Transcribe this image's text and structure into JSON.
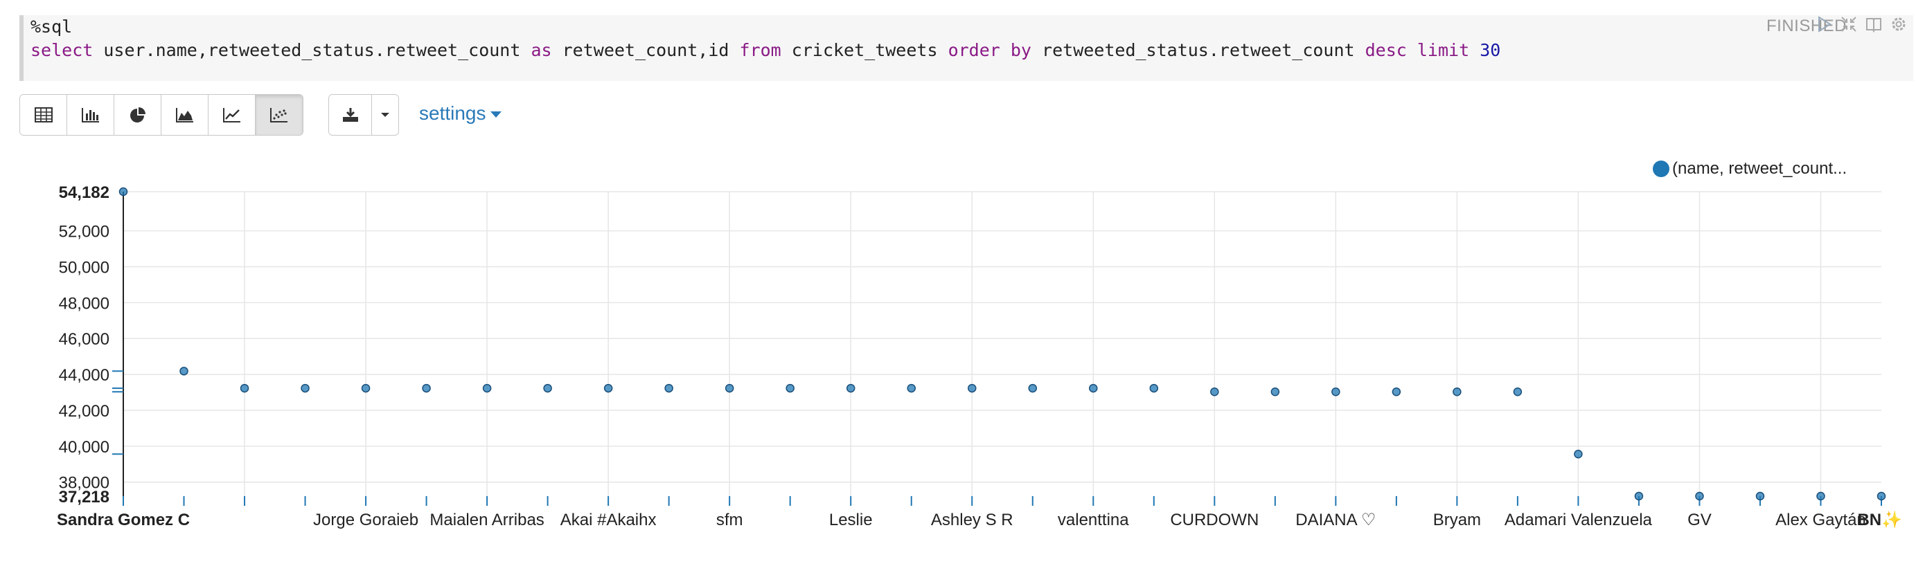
{
  "editor": {
    "magic": "%sql",
    "query": {
      "t1": "select",
      "t2": " user.name,retweeted_status.retweet_count ",
      "t3": "as",
      "t4": " retweet_count,id ",
      "t5": "from",
      "t6": " cricket_tweets ",
      "t7": "order by",
      "t8": " retweeted_status.retweet_count ",
      "t9": "desc limit",
      "t10": " ",
      "t11": "30"
    }
  },
  "status": "FINISHED",
  "toolbar": {
    "buttons": [
      "table-icon",
      "bar-chart-icon",
      "pie-chart-icon",
      "area-chart-icon",
      "line-chart-icon",
      "scatter-chart-icon"
    ],
    "active": "scatter-chart-icon",
    "download": "download-icon",
    "settings_label": "settings"
  },
  "colors": {
    "series": "#1f77b4",
    "accent": "#2a7ab8",
    "grid": "#e6e6e6"
  },
  "chart_data": {
    "type": "scatter",
    "legend": "(name, retweet_count...",
    "legend_position": "top-right",
    "grid": true,
    "y_axis_min_label": "37,218",
    "y_axis_max_label": "54,182",
    "y_ticks": [
      "38,000",
      "40,000",
      "42,000",
      "44,000",
      "46,000",
      "48,000",
      "50,000",
      "52,000"
    ],
    "ylim": [
      37218,
      54182
    ],
    "x_labels": [
      "Sandra Gomez C",
      "",
      "",
      "",
      "Jorge Goraieb",
      "",
      "Maialen Arribas",
      "",
      "Akai #Akaihx",
      "",
      "sfm",
      "",
      "Leslie",
      "",
      "Ashley S R",
      "",
      "valenttina",
      "",
      "CURDOWN",
      "",
      "DAIANA ♡",
      "",
      "Bryam",
      "",
      "Adamari Valenzuela",
      "",
      "GV",
      "",
      "Alex Gaytán",
      "BN✨"
    ],
    "values": [
      54182,
      44184,
      43230,
      43230,
      43230,
      43230,
      43230,
      43230,
      43230,
      43230,
      43230,
      43230,
      43230,
      43230,
      43230,
      43230,
      43230,
      43230,
      43030,
      43030,
      43030,
      43030,
      43030,
      43030,
      39560,
      37218,
      37218,
      37218,
      37218,
      37218
    ]
  }
}
